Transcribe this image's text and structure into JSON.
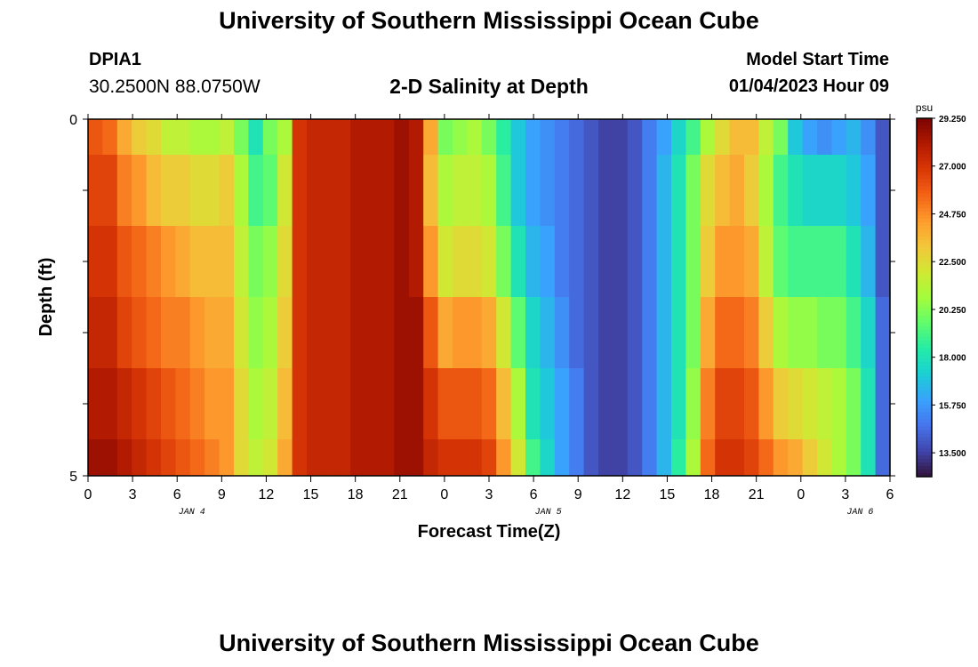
{
  "header": {
    "title": "University of Southern Mississippi Ocean Cube",
    "station_id": "DPIA1",
    "station_coords": "30.2500N  88.0750W",
    "plot_title": "2-D Salinity at Depth",
    "model_start_label": "Model Start Time",
    "model_start_time": "01/04/2023 Hour 09"
  },
  "footer": {
    "title": "University of Southern Mississippi Ocean Cube"
  },
  "chart_data": {
    "type": "heatmap",
    "xlabel": "Forecast Time(Z)",
    "ylabel": "Depth (ft)",
    "ylim": [
      0,
      5
    ],
    "y_tick_labels": [
      "0",
      "5"
    ],
    "x_tick_labels": [
      "0",
      "3",
      "6",
      "9",
      "12",
      "15",
      "18",
      "21",
      "0",
      "3",
      "6",
      "9",
      "12",
      "15",
      "18",
      "21",
      "0",
      "3",
      "6"
    ],
    "day_labels": [
      "JAN 4",
      "JAN 5",
      "JAN 6"
    ],
    "colorbar": {
      "unit": "psu",
      "min": 12.375,
      "max": 29.25,
      "tick_labels": [
        "29.250",
        "27.000",
        "24.750",
        "22.500",
        "20.250",
        "18.000",
        "15.750",
        "13.500"
      ]
    },
    "colormap": [
      "#30123b",
      "#4145ab",
      "#4675ed",
      "#39a2fc",
      "#1bcfd4",
      "#24eca6",
      "#61fc6c",
      "#a4fc3b",
      "#d1e834",
      "#f3c63a",
      "#fe9b2d",
      "#f36315",
      "#d93806",
      "#b11901",
      "#7a0402"
    ],
    "time_hours": [
      0,
      1,
      2,
      3,
      4,
      5,
      6,
      7,
      8,
      9,
      10,
      11,
      12,
      13,
      14,
      15,
      16,
      17,
      18,
      19,
      20,
      21,
      22,
      23,
      24,
      25,
      26,
      27,
      28,
      29,
      30,
      31,
      32,
      33,
      34,
      35,
      36,
      37,
      38,
      39,
      40,
      41,
      42,
      43,
      44,
      45,
      46,
      47,
      48,
      49,
      50,
      51,
      52,
      53,
      54
    ],
    "depth_rows_ft": [
      "0-0.5",
      "0.5-1.5",
      "1.5-2.5",
      "2.5-3.5",
      "3.5-4.5",
      "4.5-5"
    ],
    "salinity_psu": [
      [
        26.0,
        25.5,
        24.0,
        23.0,
        22.5,
        21.5,
        21.5,
        21.0,
        21.0,
        21.5,
        20.0,
        18.0,
        20.0,
        21.0,
        27.0,
        27.5,
        27.5,
        27.5,
        28.0,
        28.0,
        28.0,
        28.5,
        28.0,
        24.0,
        20.0,
        20.5,
        21.0,
        20.0,
        18.5,
        17.0,
        16.0,
        15.5,
        15.0,
        14.5,
        14.0,
        13.5,
        13.5,
        14.0,
        15.0,
        16.0,
        17.5,
        19.0,
        21.0,
        22.5,
        23.5,
        23.5,
        21.5,
        20.0,
        17.0,
        16.0,
        15.5,
        16.0,
        16.5,
        15.5,
        14.0
      ],
      [
        26.5,
        26.5,
        25.0,
        24.5,
        23.5,
        23.0,
        23.0,
        22.5,
        22.5,
        23.0,
        21.0,
        19.0,
        19.5,
        22.0,
        27.0,
        27.5,
        27.5,
        27.5,
        28.0,
        28.0,
        28.0,
        28.5,
        28.0,
        23.5,
        21.0,
        21.5,
        21.5,
        21.0,
        19.0,
        17.0,
        16.0,
        15.5,
        15.0,
        14.5,
        14.0,
        13.5,
        13.5,
        14.0,
        15.0,
        16.5,
        18.0,
        20.0,
        22.5,
        23.5,
        24.0,
        23.0,
        21.0,
        19.0,
        18.0,
        17.5,
        17.5,
        17.5,
        17.0,
        16.0,
        14.0
      ],
      [
        27.0,
        27.0,
        26.0,
        25.5,
        25.0,
        24.5,
        24.0,
        23.5,
        23.5,
        23.5,
        21.5,
        20.0,
        20.5,
        22.5,
        27.0,
        27.5,
        27.5,
        27.5,
        28.0,
        28.0,
        28.0,
        28.5,
        28.0,
        24.5,
        22.0,
        22.5,
        22.5,
        22.0,
        20.0,
        18.0,
        16.5,
        16.0,
        15.0,
        14.5,
        14.0,
        13.5,
        13.5,
        14.0,
        15.0,
        16.5,
        18.0,
        20.0,
        23.0,
        24.5,
        24.5,
        24.0,
        21.5,
        19.5,
        19.0,
        19.0,
        19.0,
        19.0,
        18.0,
        16.5,
        14.0
      ],
      [
        27.5,
        27.5,
        26.5,
        26.0,
        25.5,
        25.0,
        25.0,
        24.5,
        24.0,
        24.0,
        22.0,
        20.5,
        21.0,
        23.0,
        27.0,
        27.5,
        27.5,
        27.5,
        28.0,
        28.0,
        28.0,
        28.5,
        28.5,
        26.0,
        24.0,
        24.5,
        24.5,
        24.0,
        22.0,
        19.5,
        17.5,
        16.5,
        15.5,
        14.5,
        14.0,
        13.5,
        13.5,
        14.0,
        15.0,
        16.5,
        18.0,
        20.0,
        24.0,
        25.5,
        25.5,
        25.0,
        23.0,
        21.0,
        20.5,
        20.5,
        20.0,
        20.0,
        19.0,
        17.5,
        14.5
      ],
      [
        28.0,
        28.0,
        27.5,
        27.0,
        26.5,
        26.0,
        25.5,
        25.0,
        24.5,
        24.5,
        22.5,
        21.0,
        21.5,
        23.5,
        27.0,
        27.5,
        27.5,
        27.5,
        28.0,
        28.0,
        28.0,
        28.5,
        28.5,
        27.0,
        26.0,
        26.0,
        26.0,
        25.5,
        23.5,
        21.0,
        18.0,
        17.0,
        16.0,
        15.0,
        14.0,
        13.5,
        13.5,
        14.0,
        15.0,
        16.5,
        18.0,
        20.5,
        25.0,
        26.5,
        26.5,
        26.0,
        24.5,
        23.0,
        22.5,
        22.0,
        21.5,
        21.0,
        20.0,
        18.0,
        14.5
      ],
      [
        28.5,
        28.5,
        28.0,
        27.5,
        27.0,
        26.5,
        26.0,
        25.5,
        25.0,
        24.5,
        22.5,
        21.5,
        22.0,
        24.0,
        27.0,
        27.5,
        27.5,
        27.5,
        28.0,
        28.0,
        28.0,
        28.5,
        28.5,
        27.5,
        27.0,
        27.0,
        27.0,
        26.5,
        24.5,
        22.0,
        19.0,
        17.5,
        16.0,
        15.0,
        14.0,
        13.5,
        13.5,
        14.0,
        15.0,
        16.5,
        18.5,
        21.0,
        25.5,
        27.0,
        27.0,
        26.5,
        25.5,
        24.5,
        24.0,
        23.0,
        22.0,
        21.0,
        20.0,
        18.0,
        14.5
      ]
    ]
  }
}
